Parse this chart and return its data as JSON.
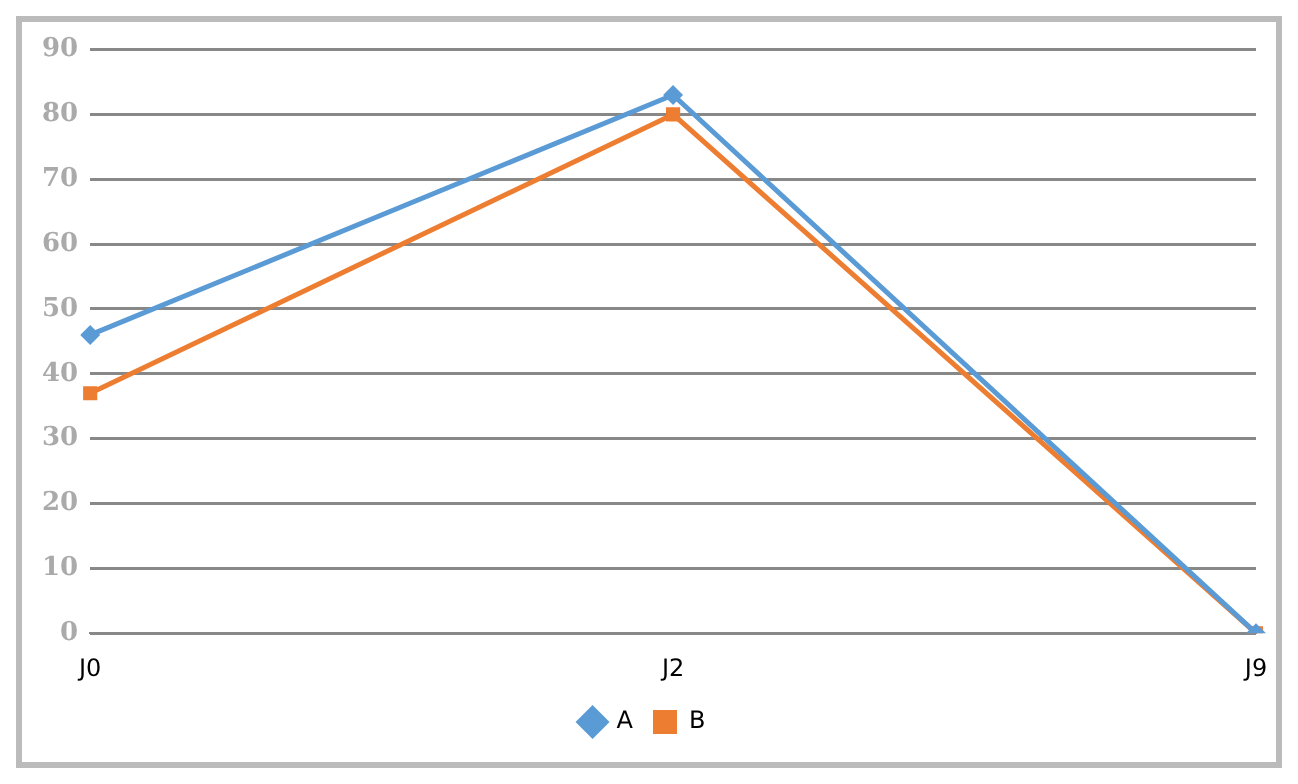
{
  "chart_data": {
    "type": "line",
    "categories": [
      "J0",
      "J2",
      "J9"
    ],
    "series": [
      {
        "name": "A",
        "color": "#5b9bd5",
        "values": [
          46,
          83,
          0
        ],
        "marker": "diamond"
      },
      {
        "name": "B",
        "color": "#ed7d31",
        "values": [
          37,
          80,
          0
        ],
        "marker": "square"
      }
    ],
    "ylim": [
      0,
      90
    ],
    "yticks": [
      0,
      10,
      20,
      30,
      40,
      50,
      60,
      70,
      80,
      90
    ],
    "grid": "y",
    "legend": "bottom"
  }
}
